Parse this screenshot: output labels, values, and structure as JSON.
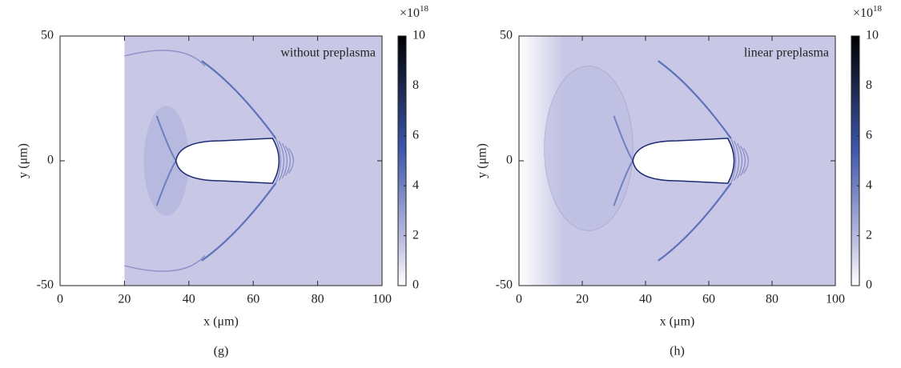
{
  "chart_data": [
    {
      "type": "heatmap",
      "annotation": "without preplasma",
      "caption": "(g)",
      "xlabel": "x (μm)",
      "ylabel": "y (μm)",
      "xlim": [
        0,
        100
      ],
      "xticks": [
        0,
        20,
        40,
        60,
        80,
        100
      ],
      "ylim": [
        -50,
        50
      ],
      "yticks": [
        -50,
        0,
        50
      ],
      "clim": [
        0,
        10
      ],
      "cticks": [
        0,
        2,
        4,
        6,
        8,
        10
      ],
      "colorbar_scale": "×10",
      "colorbar_exponent": "18",
      "colormap": [
        "#ffffff",
        "#c8c8e6",
        "#3b56aa",
        "#000000"
      ],
      "preplasma": false
    },
    {
      "type": "heatmap",
      "annotation": "linear preplasma",
      "caption": "(h)",
      "xlabel": "x (μm)",
      "ylabel": "y (μm)",
      "xlim": [
        0,
        100
      ],
      "xticks": [
        0,
        20,
        40,
        60,
        80,
        100
      ],
      "ylim": [
        -50,
        50
      ],
      "yticks": [
        -50,
        0,
        50
      ],
      "clim": [
        0,
        10
      ],
      "cticks": [
        0,
        2,
        4,
        6,
        8,
        10
      ],
      "colorbar_scale": "×10",
      "colorbar_exponent": "18",
      "colormap": [
        "#ffffff",
        "#c8c8e6",
        "#3b56aa",
        "#000000"
      ],
      "preplasma": true
    }
  ]
}
